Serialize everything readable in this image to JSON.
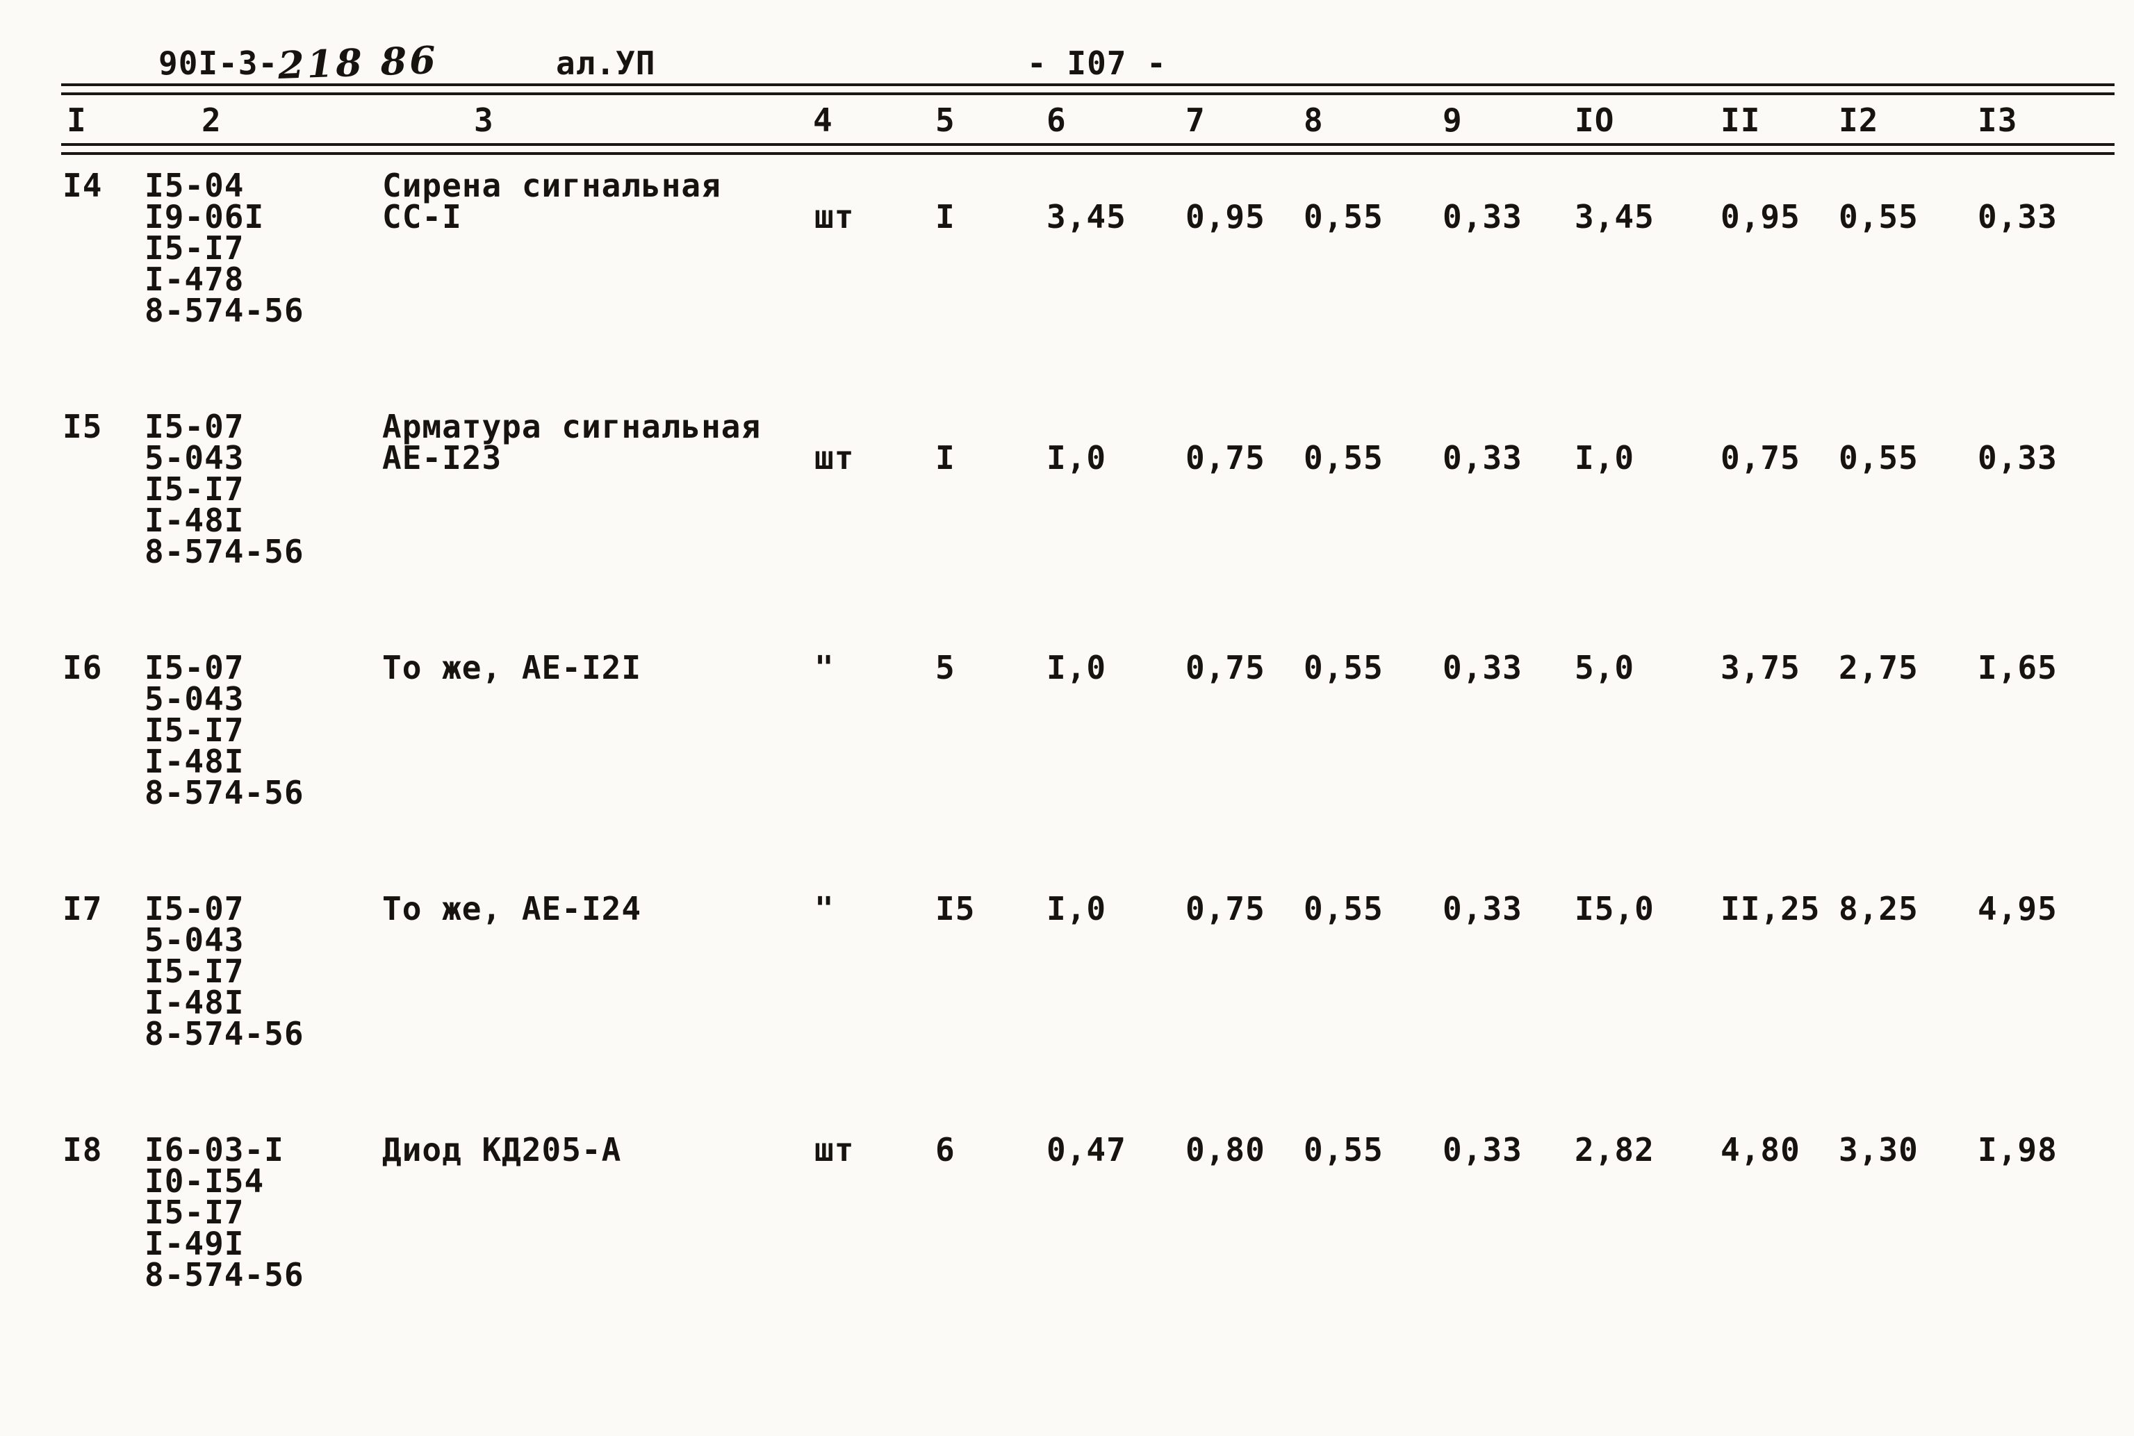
{
  "header": {
    "doc_number_typed": "90I-3-",
    "doc_number_handwritten": "218 86",
    "album": "ал.УП",
    "page_number": "- I07 -"
  },
  "table": {
    "column_headers": [
      "I",
      "2",
      "3",
      "4",
      "5",
      "6",
      "7",
      "8",
      "9",
      "IO",
      "II",
      "I2",
      "I3"
    ],
    "rows": [
      {
        "num": "I4",
        "codes": [
          "I5-04",
          "I9-06I",
          "I5-I7",
          "I-478",
          "8-574-56"
        ],
        "name_lines": [
          "Сирена сигнальная",
          "СС-I"
        ],
        "unit": "шт",
        "qty": "I",
        "values": [
          "3,45",
          "0,95",
          "0,55",
          "0,33",
          "3,45",
          "0,95",
          "0,55",
          "0,33"
        ]
      },
      {
        "num": "I5",
        "codes": [
          "I5-07",
          "5-043",
          "I5-I7",
          "I-48I",
          "8-574-56"
        ],
        "name_lines": [
          "Арматура сигнальная",
          "АЕ-I23"
        ],
        "unit": "шт",
        "qty": "I",
        "values": [
          "I,0",
          "0,75",
          "0,55",
          "0,33",
          "I,0",
          "0,75",
          "0,55",
          "0,33"
        ]
      },
      {
        "num": "I6",
        "codes": [
          "I5-07",
          "5-043",
          "I5-I7",
          "I-48I",
          "8-574-56"
        ],
        "name_lines": [
          "То же, АЕ-I2I"
        ],
        "unit": "\"",
        "qty": "5",
        "values": [
          "I,0",
          "0,75",
          "0,55",
          "0,33",
          "5,0",
          "3,75",
          "2,75",
          "I,65"
        ]
      },
      {
        "num": "I7",
        "codes": [
          "I5-07",
          "5-043",
          "I5-I7",
          "I-48I",
          "8-574-56"
        ],
        "name_lines": [
          "То же, АЕ-I24"
        ],
        "unit": "\"",
        "qty": "I5",
        "values": [
          "I,0",
          "0,75",
          "0,55",
          "0,33",
          "I5,0",
          "II,25",
          "8,25",
          "4,95"
        ]
      },
      {
        "num": "I8",
        "codes": [
          "I6-03-I",
          "I0-I54",
          "I5-I7",
          "I-49I",
          "8-574-56"
        ],
        "name_lines": [
          "Диод КД205-А"
        ],
        "unit": "шт",
        "qty": "6",
        "values": [
          "0,47",
          "0,80",
          "0,55",
          "0,33",
          "2,82",
          "4,80",
          "3,30",
          "I,98"
        ]
      }
    ]
  }
}
